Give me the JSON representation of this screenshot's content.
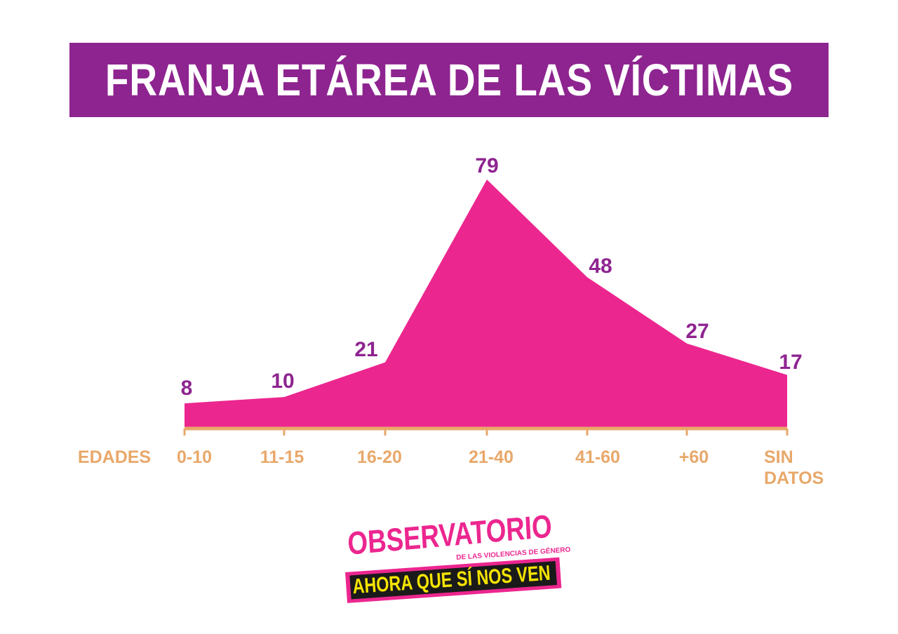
{
  "title": "FRANJA ETÁREA DE LAS VÍCTIMAS",
  "chart_data": {
    "type": "area",
    "xlabel": "EDADES",
    "categories": [
      "0-10",
      "11-15",
      "16-20",
      "21-40",
      "41-60",
      "+60",
      "SIN DATOS"
    ],
    "values": [
      8,
      10,
      21,
      79,
      48,
      27,
      17
    ],
    "title": "FRANJA ETÁREA DE LAS VÍCTIMAS",
    "grid": false,
    "legend": "none"
  },
  "colors": {
    "title_band": "#8e2490",
    "area_fill": "#ec268f",
    "value_labels": "#8e2490",
    "axis_and_categories": "#e8a86a"
  },
  "logo": {
    "line1": "OBSERVATORIO",
    "line2": "DE LAS VIOLENCIAS DE GÉNERO",
    "line3": "AHORA QUE SÍ NOS VEN"
  }
}
